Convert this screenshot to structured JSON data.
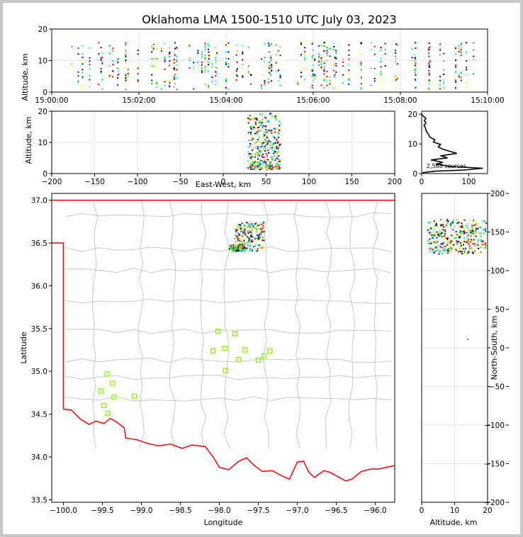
{
  "chart_data": [
    {
      "type": "scatter",
      "panel": "time-altitude",
      "title": "Oklahoma LMA 1500-1510 UTC July 03, 2023",
      "xlabel": "",
      "ylabel": "Altitude, km",
      "xlim": [
        "15:00:00",
        "15:10:00"
      ],
      "ylim": [
        0,
        20
      ],
      "xticks": [
        "15:00:00",
        "15:02:00",
        "15:04:00",
        "15:06:00",
        "15:08:00",
        "15:10:00"
      ],
      "yticks": [
        0,
        10,
        20
      ],
      "grid": true
    },
    {
      "type": "scatter",
      "panel": "eastwest-altitude",
      "xlabel": "East-West, km",
      "ylabel": "Altitude, km",
      "xlim": [
        -200,
        200
      ],
      "ylim": [
        0,
        20
      ],
      "xticks": [
        -200,
        -150,
        -100,
        -50,
        0,
        50,
        100,
        150,
        200
      ],
      "yticks": [
        0,
        10,
        20
      ],
      "grid": true
    },
    {
      "type": "line",
      "panel": "altitude-histogram",
      "annotation": "2,568 sources",
      "xlim": [
        0,
        140
      ],
      "ylim": [
        0,
        21
      ],
      "xticks": [
        0,
        100
      ],
      "yticks": [
        0,
        10,
        20
      ],
      "profile": [
        {
          "count": 2,
          "alt": 0.3
        },
        {
          "count": 30,
          "alt": 0.8
        },
        {
          "count": 90,
          "alt": 1.2
        },
        {
          "count": 130,
          "alt": 1.8
        },
        {
          "count": 60,
          "alt": 2.4
        },
        {
          "count": 30,
          "alt": 3.2
        },
        {
          "count": 45,
          "alt": 3.8
        },
        {
          "count": 20,
          "alt": 4.6
        },
        {
          "count": 55,
          "alt": 5.3
        },
        {
          "count": 40,
          "alt": 6.0
        },
        {
          "count": 75,
          "alt": 6.8
        },
        {
          "count": 60,
          "alt": 7.5
        },
        {
          "count": 45,
          "alt": 8.2
        },
        {
          "count": 35,
          "alt": 9.0
        },
        {
          "count": 40,
          "alt": 9.8
        },
        {
          "count": 25,
          "alt": 10.6
        },
        {
          "count": 28,
          "alt": 11.4
        },
        {
          "count": 18,
          "alt": 12.2
        },
        {
          "count": 15,
          "alt": 13.0
        },
        {
          "count": 12,
          "alt": 13.8
        },
        {
          "count": 9,
          "alt": 14.6
        },
        {
          "count": 8,
          "alt": 15.4
        },
        {
          "count": 5,
          "alt": 16.2
        },
        {
          "count": 9,
          "alt": 17.0
        },
        {
          "count": 6,
          "alt": 17.8
        },
        {
          "count": 9,
          "alt": 18.6
        },
        {
          "count": 3,
          "alt": 19.4
        },
        {
          "count": 0,
          "alt": 20.0
        }
      ]
    },
    {
      "type": "scatter",
      "panel": "plan-view-map",
      "xlabel": "Longitude",
      "ylabel": "Latitude",
      "xlim": [
        -100.15,
        -95.75
      ],
      "ylim": [
        33.47,
        37.08
      ],
      "xticks": [
        -100.0,
        -99.5,
        -99.0,
        -98.5,
        -98.0,
        -97.5,
        -97.0,
        -96.5,
        -96.0
      ],
      "yticks": [
        33.5,
        34.0,
        34.5,
        35.0,
        35.5,
        36.0,
        36.5,
        37.0
      ],
      "stations": [
        {
          "lon": -98.02,
          "lat": 35.47
        },
        {
          "lon": -97.8,
          "lat": 35.44
        },
        {
          "lon": -97.93,
          "lat": 35.27
        },
        {
          "lon": -98.08,
          "lat": 35.24
        },
        {
          "lon": -97.67,
          "lat": 35.25
        },
        {
          "lon": -97.35,
          "lat": 35.24
        },
        {
          "lon": -97.43,
          "lat": 35.18
        },
        {
          "lon": -97.75,
          "lat": 35.14
        },
        {
          "lon": -97.5,
          "lat": 35.13
        },
        {
          "lon": -97.92,
          "lat": 35.01
        },
        {
          "lon": -99.44,
          "lat": 34.97
        },
        {
          "lon": -99.37,
          "lat": 34.86
        },
        {
          "lon": -99.52,
          "lat": 34.77
        },
        {
          "lon": -99.35,
          "lat": 34.7
        },
        {
          "lon": -99.09,
          "lat": 34.71
        },
        {
          "lon": -99.48,
          "lat": 34.6
        },
        {
          "lon": -99.43,
          "lat": 34.51
        }
      ],
      "source_region": {
        "lon": [
          -97.85,
          -97.2
        ],
        "lat": [
          36.36,
          36.76
        ]
      }
    },
    {
      "type": "scatter",
      "panel": "altitude-northsouth",
      "xlabel": "Altitude, km",
      "ylabel": "North-South, km",
      "xlim": [
        0,
        20
      ],
      "ylim": [
        -200,
        200
      ],
      "xticks": [
        0,
        10,
        20
      ],
      "yticks": [
        -200,
        -150,
        -100,
        -50,
        0,
        50,
        100,
        150,
        200
      ],
      "grid": true
    }
  ],
  "colors": {
    "border_line": "#ff0000",
    "county_lines": "#c8c8c8",
    "station_marker": "#7fff00",
    "palette": [
      "#0000ff",
      "#00bfff",
      "#00ffff",
      "#00ff7f",
      "#00c800",
      "#ffff00",
      "#ffa500",
      "#ff0000",
      "#8b0000",
      "#000000"
    ]
  }
}
